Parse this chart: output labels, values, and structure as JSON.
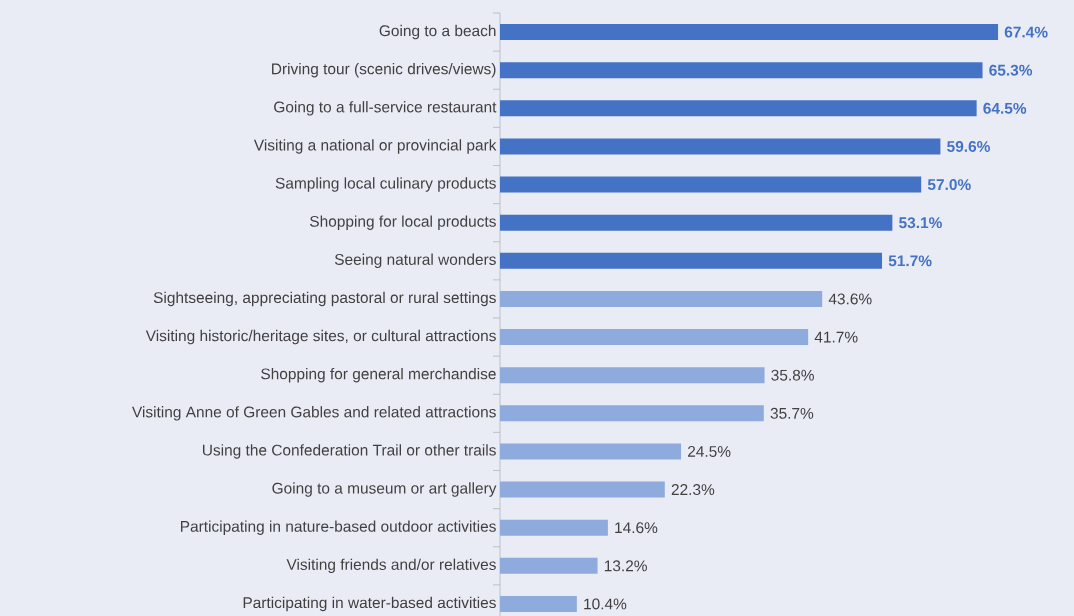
{
  "chart_data": {
    "type": "bar",
    "orientation": "horizontal",
    "categories": [
      "Going to a beach",
      "Driving tour (scenic drives/views)",
      "Going to a full-service restaurant",
      "Visiting a national or provincial park",
      "Sampling local culinary products",
      "Shopping for local products",
      "Seeing natural wonders",
      "Sightseeing, appreciating pastoral or rural settings",
      "Visiting historic/heritage sites, or cultural attractions",
      "Shopping for general merchandise",
      "Visiting Anne of Green Gables and related attractions",
      "Using the Confederation Trail or other trails",
      "Going to a museum or art gallery",
      "Participating in nature-based outdoor activities",
      "Visiting friends and/or relatives",
      "Participating in water-based activities"
    ],
    "values": [
      67.4,
      65.3,
      64.5,
      59.6,
      57.0,
      53.1,
      51.7,
      43.6,
      41.7,
      35.8,
      35.7,
      24.5,
      22.3,
      14.6,
      13.2,
      10.4
    ],
    "value_labels": [
      "67.4%",
      "65.3%",
      "64.5%",
      "59.6%",
      "57.0%",
      "53.1%",
      "51.7%",
      "43.6%",
      "41.7%",
      "35.8%",
      "35.7%",
      "24.5%",
      "22.3%",
      "14.6%",
      "13.2%",
      "10.4%"
    ],
    "colors": [
      "#4472c4",
      "#4472c4",
      "#4472c4",
      "#4472c4",
      "#4472c4",
      "#4472c4",
      "#4472c4",
      "#8faadc",
      "#8faadc",
      "#8faadc",
      "#8faadc",
      "#8faadc",
      "#8faadc",
      "#8faadc",
      "#8faadc",
      "#8faadc"
    ]
  }
}
